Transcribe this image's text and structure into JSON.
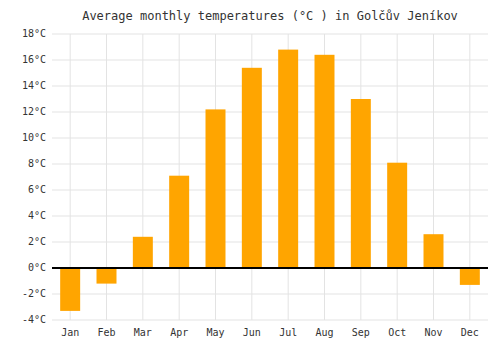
{
  "chart_data": {
    "type": "bar",
    "title": "Average monthly temperatures (°C ) in Golčův Jeníkov",
    "categories": [
      "Jan",
      "Feb",
      "Mar",
      "Apr",
      "May",
      "Jun",
      "Jul",
      "Aug",
      "Sep",
      "Oct",
      "Nov",
      "Dec"
    ],
    "values": [
      -3.3,
      -1.2,
      2.4,
      7.1,
      12.2,
      15.4,
      16.8,
      16.4,
      13.0,
      8.1,
      2.6,
      -1.3
    ],
    "color": "#FFA500",
    "ylim": [
      -4,
      18
    ],
    "yticks": [
      {
        "value": -4,
        "label": "-4°C"
      },
      {
        "value": -2,
        "label": "-2°C"
      },
      {
        "value": 0,
        "label": "0°C"
      },
      {
        "value": 2,
        "label": "2°C"
      },
      {
        "value": 4,
        "label": "4°C"
      },
      {
        "value": 6,
        "label": "6°C"
      },
      {
        "value": 8,
        "label": "8°C"
      },
      {
        "value": 10,
        "label": "10°C"
      },
      {
        "value": 12,
        "label": "12°C"
      },
      {
        "value": 14,
        "label": "14°C"
      },
      {
        "value": 16,
        "label": "16°C"
      },
      {
        "value": 18,
        "label": "18°C"
      }
    ],
    "grid": true
  }
}
